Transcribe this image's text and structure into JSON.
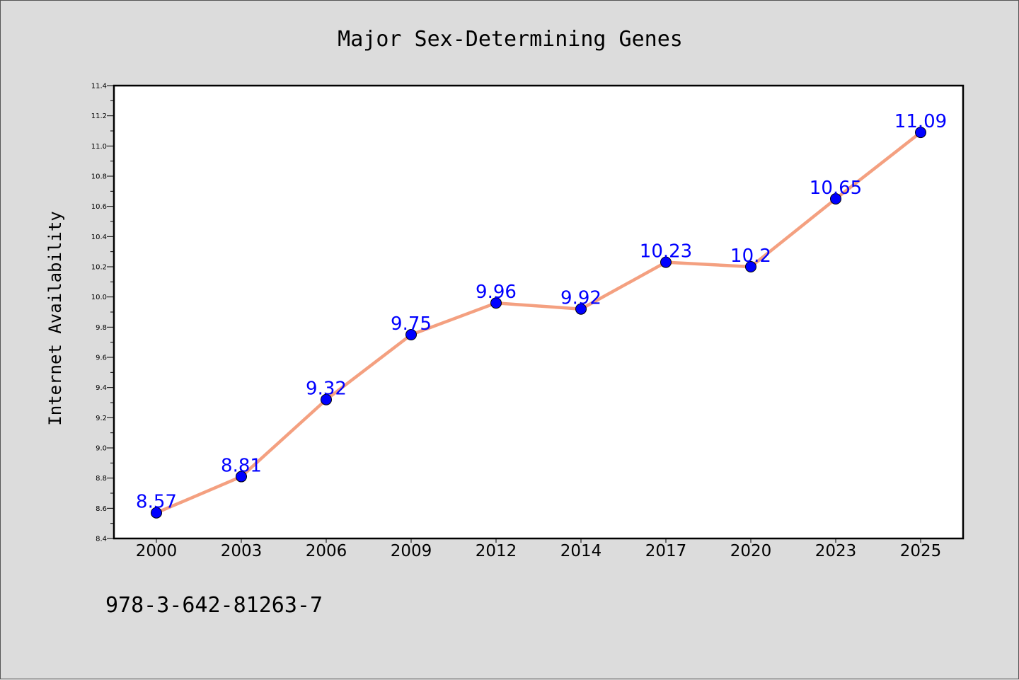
{
  "chart_data": {
    "type": "line",
    "title": "Major Sex-Determining Genes",
    "xlabel": "",
    "ylabel": "Internet Availability",
    "categories": [
      "2000",
      "2003",
      "2006",
      "2009",
      "2012",
      "2014",
      "2017",
      "2020",
      "2023",
      "2025"
    ],
    "series": [
      {
        "values": [
          8.57,
          8.81,
          9.32,
          9.75,
          9.96,
          9.92,
          10.23,
          10.2,
          10.65,
          11.09
        ],
        "data_labels": [
          "8.57",
          "8.81",
          "9.32",
          "9.75",
          "9.96",
          "9.92",
          "10.23",
          "10.2",
          "10.65",
          "11.09"
        ],
        "line_color": "#f4a080",
        "marker_color": "#0000ff"
      }
    ],
    "ylim": [
      8.4,
      11.4
    ],
    "yticks": [
      "8.4",
      "8.6",
      "8.8",
      "9.0",
      "9.2",
      "9.4",
      "9.6",
      "9.8",
      "10.0",
      "10.2",
      "10.4",
      "10.6",
      "10.8",
      "11.0",
      "11.2",
      "11.4"
    ],
    "grid": false,
    "legend": "none"
  },
  "footer_text": "978-3-642-81263-7",
  "colors": {
    "background": "#dcdcdc",
    "plot_background": "#ffffff",
    "line": "#f4a080",
    "marker": "#0000ff",
    "data_label": "#0000ff"
  }
}
